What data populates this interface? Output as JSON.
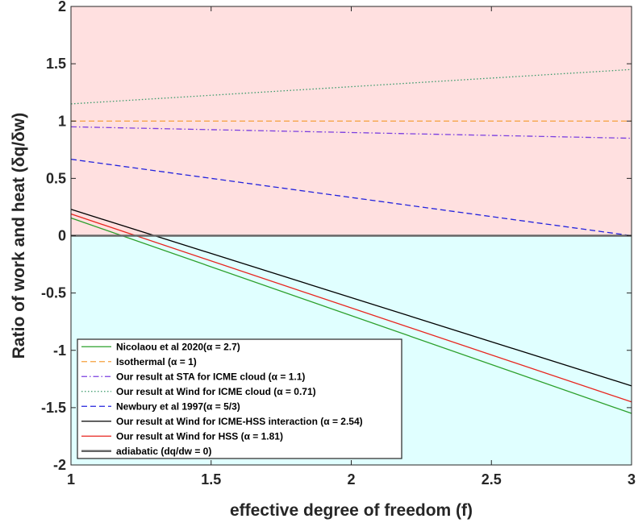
{
  "chart_data": {
    "type": "line",
    "xlabel": "effective degree of freedom (f)",
    "ylabel": "Ratio of work and heat (δq/δw)",
    "xlim": [
      1,
      3
    ],
    "ylim": [
      -2,
      2
    ],
    "xticks": [
      "1",
      "1.5",
      "2",
      "2.5",
      "3"
    ],
    "yticks": [
      "-2",
      "-1.5",
      "-1",
      "-0.5",
      "0",
      "0.5",
      "1",
      "1.5",
      "2"
    ],
    "grid": false,
    "legend_position": "bottom-left",
    "background_regions": [
      {
        "y_from": 0,
        "y_to": 2,
        "color": "#ffe0e0"
      },
      {
        "y_from": -2,
        "y_to": 0,
        "color": "#e0ffff"
      }
    ],
    "series": [
      {
        "name": "Nicolaou et al 2020(α = 2.7)",
        "color": "#2ca02c",
        "dash": "solid",
        "x": [
          1,
          3
        ],
        "y": [
          0.155,
          -1.55
        ]
      },
      {
        "name": "Isothermal (α = 1)",
        "color": "#f5a03c",
        "dash": "dashed",
        "x": [
          1,
          3
        ],
        "y": [
          1.0,
          1.0
        ]
      },
      {
        "name": "Our result at STA for ICME cloud (α = 1.1)",
        "color": "#7b3fe0",
        "dash": "dashdot",
        "x": [
          1,
          3
        ],
        "y": [
          0.95,
          0.85
        ]
      },
      {
        "name": "Our result at Wind for ICME cloud (α = 0.71)",
        "color": "#3a9a6a",
        "dash": "dotted",
        "x": [
          1,
          3
        ],
        "y": [
          1.15,
          1.45
        ]
      },
      {
        "name": "Newbury et al 1997(α = 5/3)",
        "color": "#2222dd",
        "dash": "dashed",
        "x": [
          1,
          3
        ],
        "y": [
          0.667,
          0.0
        ]
      },
      {
        "name": "Our result at Wind for ICME-HSS interaction (α = 2.54)",
        "color": "#000000",
        "dash": "solid",
        "x": [
          1,
          3
        ],
        "y": [
          0.23,
          -1.31
        ]
      },
      {
        "name": "Our result at Wind for HSS (α = 1.81)",
        "color": "#e8251f",
        "dash": "solid",
        "x": [
          1,
          3
        ],
        "y": [
          0.19,
          -1.45
        ]
      },
      {
        "name": "adiabatic (dq/dw = 0)",
        "color": "#666666",
        "dash": "solid",
        "width": 2.5,
        "x": [
          1,
          3
        ],
        "y": [
          0,
          0
        ]
      }
    ]
  }
}
